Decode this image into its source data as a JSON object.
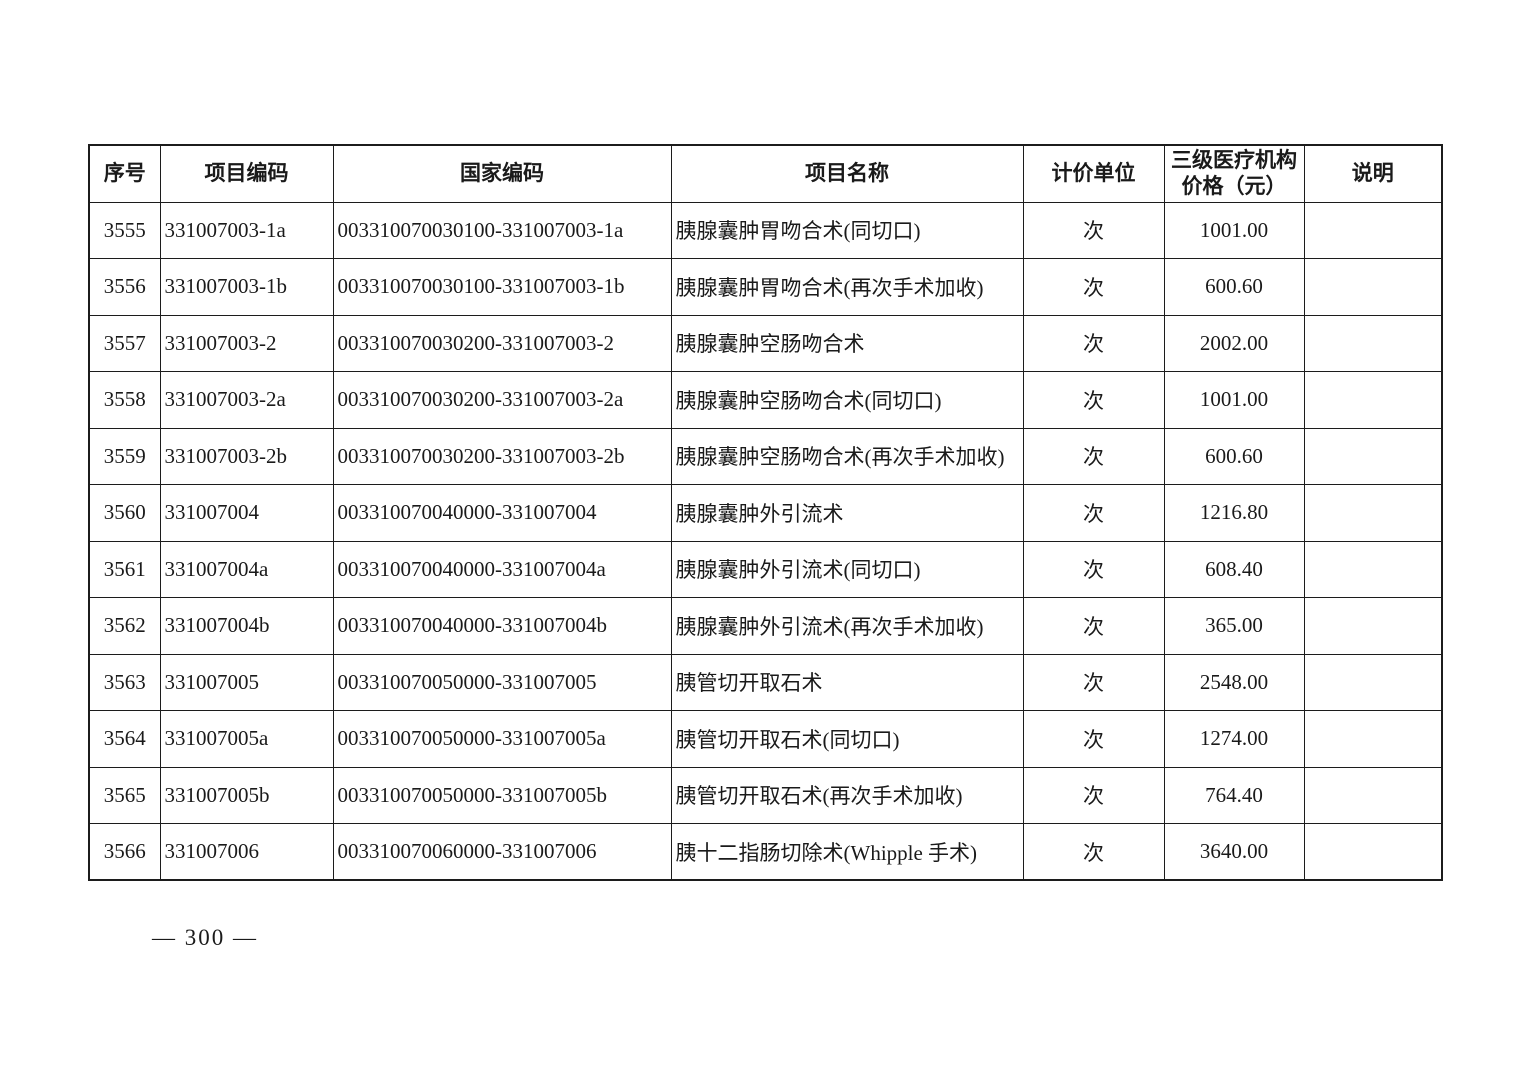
{
  "page": {
    "footer_page_number": "— 300 —"
  },
  "table": {
    "columns": [
      {
        "key": "seq",
        "label": "序号"
      },
      {
        "key": "item_code",
        "label": "项目编码"
      },
      {
        "key": "national_code",
        "label": "国家编码"
      },
      {
        "key": "item_name",
        "label": "项目名称"
      },
      {
        "key": "unit",
        "label": "计价单位"
      },
      {
        "key": "price",
        "label_line1": "三级医疗机构",
        "label_line2": "价格（元）"
      },
      {
        "key": "note",
        "label": "说明"
      }
    ],
    "rows": [
      {
        "seq": "3555",
        "item_code": "331007003-1a",
        "national_code": "003310070030100-331007003-1a",
        "item_name": "胰腺囊肿胃吻合术(同切口)",
        "unit": "次",
        "price": "1001.00",
        "note": ""
      },
      {
        "seq": "3556",
        "item_code": "331007003-1b",
        "national_code": "003310070030100-331007003-1b",
        "item_name": "胰腺囊肿胃吻合术(再次手术加收)",
        "unit": "次",
        "price": "600.60",
        "note": ""
      },
      {
        "seq": "3557",
        "item_code": "331007003-2",
        "national_code": "003310070030200-331007003-2",
        "item_name": "胰腺囊肿空肠吻合术",
        "unit": "次",
        "price": "2002.00",
        "note": ""
      },
      {
        "seq": "3558",
        "item_code": "331007003-2a",
        "national_code": "003310070030200-331007003-2a",
        "item_name": "胰腺囊肿空肠吻合术(同切口)",
        "unit": "次",
        "price": "1001.00",
        "note": ""
      },
      {
        "seq": "3559",
        "item_code": "331007003-2b",
        "national_code": "003310070030200-331007003-2b",
        "item_name": "胰腺囊肿空肠吻合术(再次手术加收)",
        "unit": "次",
        "price": "600.60",
        "note": ""
      },
      {
        "seq": "3560",
        "item_code": "331007004",
        "national_code": "003310070040000-331007004",
        "item_name": "胰腺囊肿外引流术",
        "unit": "次",
        "price": "1216.80",
        "note": ""
      },
      {
        "seq": "3561",
        "item_code": "331007004a",
        "national_code": "003310070040000-331007004a",
        "item_name": "胰腺囊肿外引流术(同切口)",
        "unit": "次",
        "price": "608.40",
        "note": ""
      },
      {
        "seq": "3562",
        "item_code": "331007004b",
        "national_code": "003310070040000-331007004b",
        "item_name": "胰腺囊肿外引流术(再次手术加收)",
        "unit": "次",
        "price": "365.00",
        "note": ""
      },
      {
        "seq": "3563",
        "item_code": "331007005",
        "national_code": "003310070050000-331007005",
        "item_name": "胰管切开取石术",
        "unit": "次",
        "price": "2548.00",
        "note": ""
      },
      {
        "seq": "3564",
        "item_code": "331007005a",
        "national_code": "003310070050000-331007005a",
        "item_name": "胰管切开取石术(同切口)",
        "unit": "次",
        "price": "1274.00",
        "note": ""
      },
      {
        "seq": "3565",
        "item_code": "331007005b",
        "national_code": "003310070050000-331007005b",
        "item_name": "胰管切开取石术(再次手术加收)",
        "unit": "次",
        "price": "764.40",
        "note": ""
      },
      {
        "seq": "3566",
        "item_code": "331007006",
        "national_code": "003310070060000-331007006",
        "item_name": "胰十二指肠切除术(Whipple 手术)",
        "unit": "次",
        "price": "3640.00",
        "note": ""
      }
    ]
  }
}
